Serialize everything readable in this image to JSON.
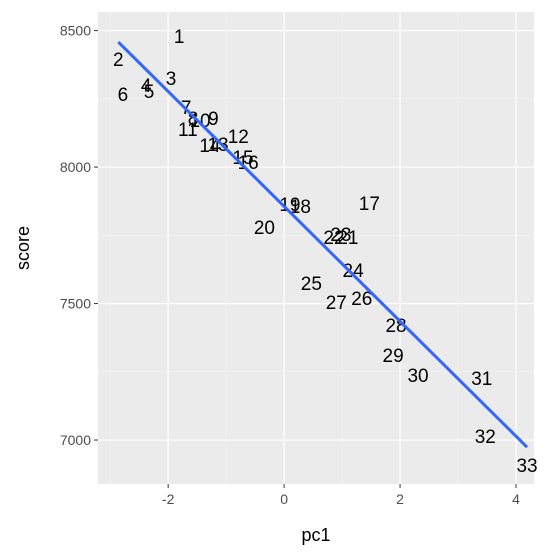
{
  "chart_data": {
    "type": "scatter",
    "x_label": "pc1",
    "y_label": "score",
    "labels": [
      "1",
      "2",
      "3",
      "4",
      "5",
      "6",
      "7",
      "8",
      "9",
      "10",
      "11",
      "12",
      "13",
      "14",
      "15",
      "16",
      "17",
      "18",
      "19",
      "20",
      "21",
      "22",
      "23",
      "24",
      "25",
      "26",
      "27",
      "28",
      "29",
      "30",
      "31",
      "32",
      "33"
    ],
    "x": [
      -1.81,
      -2.86,
      -1.95,
      -2.38,
      -2.33,
      -2.78,
      -1.69,
      -1.57,
      -1.22,
      -1.45,
      -1.66,
      -0.79,
      -1.14,
      -1.28,
      -0.71,
      -0.62,
      1.47,
      0.28,
      0.1,
      -0.34,
      1.1,
      0.86,
      0.98,
      1.19,
      0.47,
      1.34,
      0.9,
      1.93,
      1.88,
      2.31,
      3.41,
      3.47,
      4.19
    ],
    "y": [
      8480,
      8396,
      8326,
      8300,
      8278,
      8267,
      8220,
      8180,
      8180,
      8172,
      8139,
      8114,
      8084,
      8081,
      8037,
      8018,
      7868,
      7857,
      7864,
      7780,
      7744,
      7744,
      7755,
      7623,
      7575,
      7520,
      7505,
      7421,
      7311,
      7238,
      7227,
      7015,
      6908
    ],
    "fit": {
      "x": [
        -2.86,
        4.19
      ],
      "y": [
        8458,
        6974
      ],
      "color": "#3366ff"
    },
    "xlim": [
      -3.21,
      4.31
    ],
    "ylim": [
      6839,
      8568
    ],
    "xticks": [
      -2,
      0,
      2,
      4
    ],
    "yticks": [
      7000,
      7500,
      8000,
      8500
    ],
    "grid": true
  }
}
